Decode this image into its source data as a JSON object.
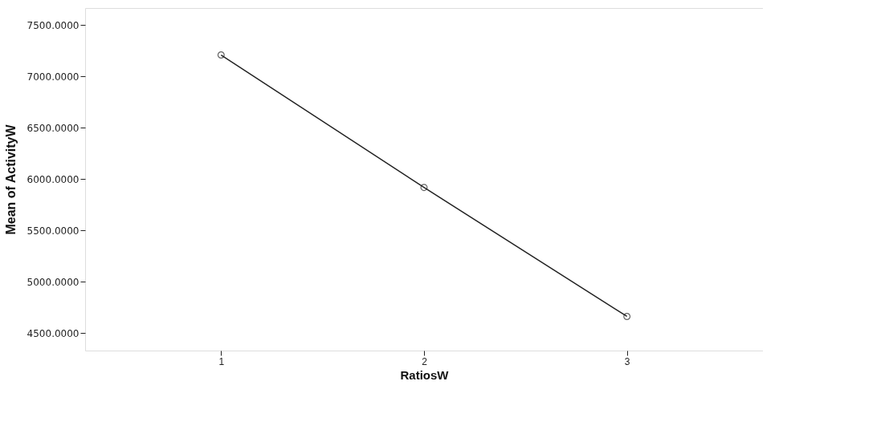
{
  "chart_data": {
    "type": "line",
    "xlabel": "RatiosW",
    "ylabel": "Mean of ActivityW",
    "x": [
      1,
      2,
      3
    ],
    "values": [
      7208,
      5918,
      4662
    ],
    "color": "#222222",
    "xlim": [
      0.33,
      3.67
    ],
    "xticks": [
      1,
      2,
      3
    ],
    "ylim": [
      4330,
      7665
    ],
    "yticks": [
      {
        "value": 4500,
        "label": "4500.0000"
      },
      {
        "value": 5000,
        "label": "5000.0000"
      },
      {
        "value": 5500,
        "label": "5500.0000"
      },
      {
        "value": 6000,
        "label": "6000.0000"
      },
      {
        "value": 6500,
        "label": "6500.0000"
      },
      {
        "value": 7000,
        "label": "7000.0000"
      },
      {
        "value": 7500,
        "label": "7500.0000"
      }
    ],
    "grid": false,
    "marker": "circle",
    "line_style": "solid"
  }
}
